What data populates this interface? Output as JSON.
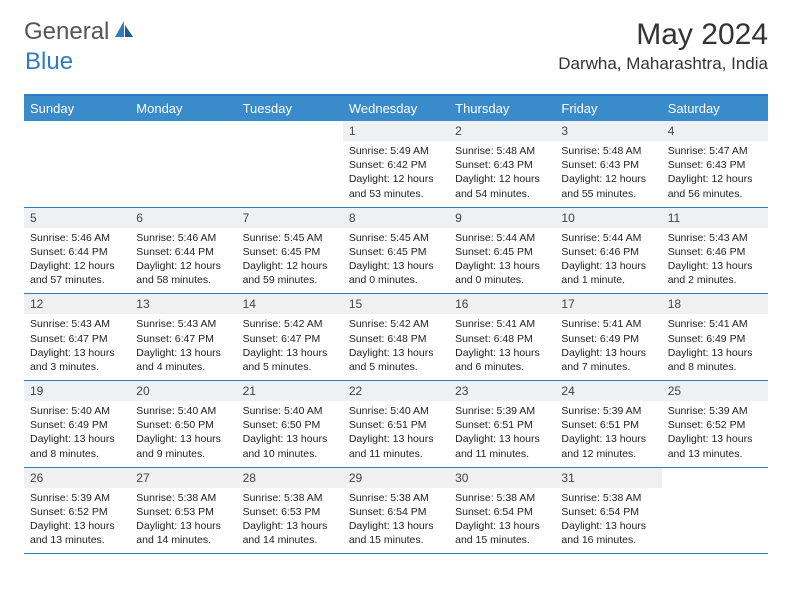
{
  "brand": {
    "general": "General",
    "blue": "Blue"
  },
  "title": "May 2024",
  "location": "Darwha, Maharashtra, India",
  "colors": {
    "header_bg": "#3a8bc9",
    "header_text": "#ffffff",
    "rule": "#2f7bbf",
    "daynum_bg": "#eef0f2",
    "body_text": "#222222",
    "logo_blue": "#2f7bbf"
  },
  "weekdays": [
    "Sunday",
    "Monday",
    "Tuesday",
    "Wednesday",
    "Thursday",
    "Friday",
    "Saturday"
  ],
  "weeks": [
    {
      "nums": [
        "",
        "",
        "",
        "1",
        "2",
        "3",
        "4"
      ],
      "cells": [
        {
          "empty": true
        },
        {
          "empty": true
        },
        {
          "empty": true
        },
        {
          "sunrise": "Sunrise: 5:49 AM",
          "sunset": "Sunset: 6:42 PM",
          "day1": "Daylight: 12 hours",
          "day2": "and 53 minutes."
        },
        {
          "sunrise": "Sunrise: 5:48 AM",
          "sunset": "Sunset: 6:43 PM",
          "day1": "Daylight: 12 hours",
          "day2": "and 54 minutes."
        },
        {
          "sunrise": "Sunrise: 5:48 AM",
          "sunset": "Sunset: 6:43 PM",
          "day1": "Daylight: 12 hours",
          "day2": "and 55 minutes."
        },
        {
          "sunrise": "Sunrise: 5:47 AM",
          "sunset": "Sunset: 6:43 PM",
          "day1": "Daylight: 12 hours",
          "day2": "and 56 minutes."
        }
      ]
    },
    {
      "nums": [
        "5",
        "6",
        "7",
        "8",
        "9",
        "10",
        "11"
      ],
      "cells": [
        {
          "sunrise": "Sunrise: 5:46 AM",
          "sunset": "Sunset: 6:44 PM",
          "day1": "Daylight: 12 hours",
          "day2": "and 57 minutes."
        },
        {
          "sunrise": "Sunrise: 5:46 AM",
          "sunset": "Sunset: 6:44 PM",
          "day1": "Daylight: 12 hours",
          "day2": "and 58 minutes."
        },
        {
          "sunrise": "Sunrise: 5:45 AM",
          "sunset": "Sunset: 6:45 PM",
          "day1": "Daylight: 12 hours",
          "day2": "and 59 minutes."
        },
        {
          "sunrise": "Sunrise: 5:45 AM",
          "sunset": "Sunset: 6:45 PM",
          "day1": "Daylight: 13 hours",
          "day2": "and 0 minutes."
        },
        {
          "sunrise": "Sunrise: 5:44 AM",
          "sunset": "Sunset: 6:45 PM",
          "day1": "Daylight: 13 hours",
          "day2": "and 0 minutes."
        },
        {
          "sunrise": "Sunrise: 5:44 AM",
          "sunset": "Sunset: 6:46 PM",
          "day1": "Daylight: 13 hours",
          "day2": "and 1 minute."
        },
        {
          "sunrise": "Sunrise: 5:43 AM",
          "sunset": "Sunset: 6:46 PM",
          "day1": "Daylight: 13 hours",
          "day2": "and 2 minutes."
        }
      ]
    },
    {
      "nums": [
        "12",
        "13",
        "14",
        "15",
        "16",
        "17",
        "18"
      ],
      "cells": [
        {
          "sunrise": "Sunrise: 5:43 AM",
          "sunset": "Sunset: 6:47 PM",
          "day1": "Daylight: 13 hours",
          "day2": "and 3 minutes."
        },
        {
          "sunrise": "Sunrise: 5:43 AM",
          "sunset": "Sunset: 6:47 PM",
          "day1": "Daylight: 13 hours",
          "day2": "and 4 minutes."
        },
        {
          "sunrise": "Sunrise: 5:42 AM",
          "sunset": "Sunset: 6:47 PM",
          "day1": "Daylight: 13 hours",
          "day2": "and 5 minutes."
        },
        {
          "sunrise": "Sunrise: 5:42 AM",
          "sunset": "Sunset: 6:48 PM",
          "day1": "Daylight: 13 hours",
          "day2": "and 5 minutes."
        },
        {
          "sunrise": "Sunrise: 5:41 AM",
          "sunset": "Sunset: 6:48 PM",
          "day1": "Daylight: 13 hours",
          "day2": "and 6 minutes."
        },
        {
          "sunrise": "Sunrise: 5:41 AM",
          "sunset": "Sunset: 6:49 PM",
          "day1": "Daylight: 13 hours",
          "day2": "and 7 minutes."
        },
        {
          "sunrise": "Sunrise: 5:41 AM",
          "sunset": "Sunset: 6:49 PM",
          "day1": "Daylight: 13 hours",
          "day2": "and 8 minutes."
        }
      ]
    },
    {
      "nums": [
        "19",
        "20",
        "21",
        "22",
        "23",
        "24",
        "25"
      ],
      "cells": [
        {
          "sunrise": "Sunrise: 5:40 AM",
          "sunset": "Sunset: 6:49 PM",
          "day1": "Daylight: 13 hours",
          "day2": "and 8 minutes."
        },
        {
          "sunrise": "Sunrise: 5:40 AM",
          "sunset": "Sunset: 6:50 PM",
          "day1": "Daylight: 13 hours",
          "day2": "and 9 minutes."
        },
        {
          "sunrise": "Sunrise: 5:40 AM",
          "sunset": "Sunset: 6:50 PM",
          "day1": "Daylight: 13 hours",
          "day2": "and 10 minutes."
        },
        {
          "sunrise": "Sunrise: 5:40 AM",
          "sunset": "Sunset: 6:51 PM",
          "day1": "Daylight: 13 hours",
          "day2": "and 11 minutes."
        },
        {
          "sunrise": "Sunrise: 5:39 AM",
          "sunset": "Sunset: 6:51 PM",
          "day1": "Daylight: 13 hours",
          "day2": "and 11 minutes."
        },
        {
          "sunrise": "Sunrise: 5:39 AM",
          "sunset": "Sunset: 6:51 PM",
          "day1": "Daylight: 13 hours",
          "day2": "and 12 minutes."
        },
        {
          "sunrise": "Sunrise: 5:39 AM",
          "sunset": "Sunset: 6:52 PM",
          "day1": "Daylight: 13 hours",
          "day2": "and 13 minutes."
        }
      ]
    },
    {
      "nums": [
        "26",
        "27",
        "28",
        "29",
        "30",
        "31",
        ""
      ],
      "cells": [
        {
          "sunrise": "Sunrise: 5:39 AM",
          "sunset": "Sunset: 6:52 PM",
          "day1": "Daylight: 13 hours",
          "day2": "and 13 minutes."
        },
        {
          "sunrise": "Sunrise: 5:38 AM",
          "sunset": "Sunset: 6:53 PM",
          "day1": "Daylight: 13 hours",
          "day2": "and 14 minutes."
        },
        {
          "sunrise": "Sunrise: 5:38 AM",
          "sunset": "Sunset: 6:53 PM",
          "day1": "Daylight: 13 hours",
          "day2": "and 14 minutes."
        },
        {
          "sunrise": "Sunrise: 5:38 AM",
          "sunset": "Sunset: 6:54 PM",
          "day1": "Daylight: 13 hours",
          "day2": "and 15 minutes."
        },
        {
          "sunrise": "Sunrise: 5:38 AM",
          "sunset": "Sunset: 6:54 PM",
          "day1": "Daylight: 13 hours",
          "day2": "and 15 minutes."
        },
        {
          "sunrise": "Sunrise: 5:38 AM",
          "sunset": "Sunset: 6:54 PM",
          "day1": "Daylight: 13 hours",
          "day2": "and 16 minutes."
        },
        {
          "empty": true
        }
      ]
    }
  ]
}
